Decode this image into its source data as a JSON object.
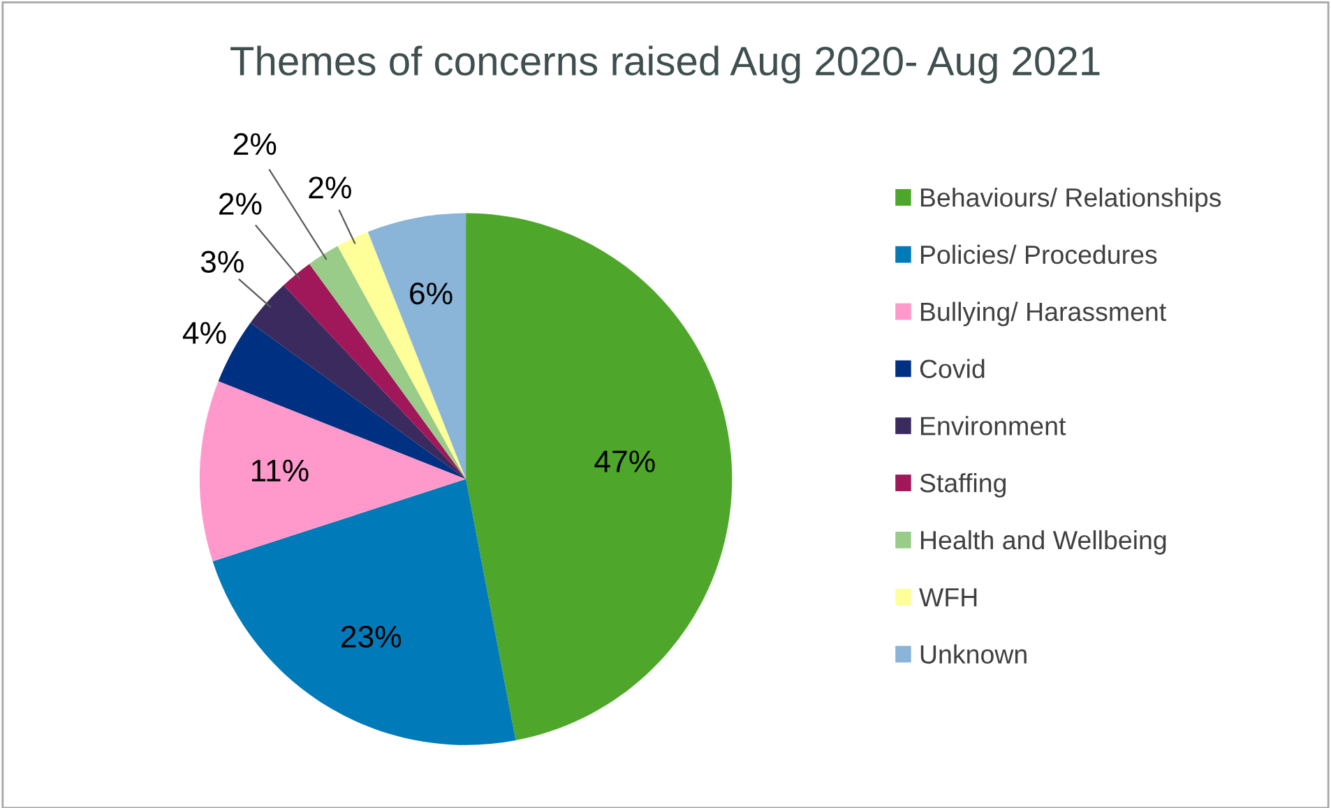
{
  "chart_data": {
    "type": "pie",
    "title": "Themes of concerns raised Aug 2020- Aug 2021",
    "categories": [
      "Behaviours/ Relationships",
      "Policies/ Procedures",
      "Bullying/ Harassment",
      "Covid",
      "Environment",
      "Staffing",
      "Health and Wellbeing",
      "WFH",
      "Unknown"
    ],
    "values": [
      47,
      23,
      11,
      4,
      3,
      2,
      2,
      2,
      6
    ],
    "colors": [
      "#4ea72a",
      "#007ab8",
      "#ff99cc",
      "#003082",
      "#3b2a5e",
      "#a0185a",
      "#99cc88",
      "#ffff99",
      "#8ab4d8"
    ],
    "value_labels": [
      "47%",
      "23%",
      "11%",
      "4%",
      "3%",
      "2%",
      "2%",
      "2%",
      "6%"
    ],
    "legend": "right"
  }
}
